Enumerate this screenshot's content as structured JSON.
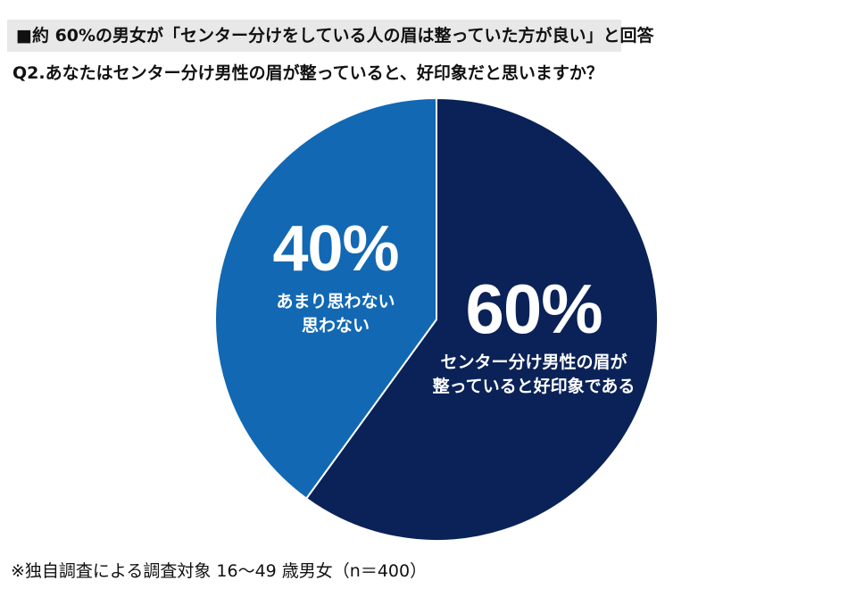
{
  "header": {
    "headline": "■約 60%の男女が「センター分けをしている人の眉は整っていた方が良い」と回答",
    "question": "Q2.あなたはセンター分け男性の眉が整っていると、好印象だと思いますか？"
  },
  "chart_data": {
    "type": "pie",
    "title": "",
    "slices": [
      {
        "value": 60,
        "percent_label": "60%",
        "label_lines": [
          "センター分け男性の眉が",
          "整っていると好印象である"
        ],
        "color": "#0a2257"
      },
      {
        "value": 40,
        "percent_label": "40%",
        "label_lines": [
          "あまり思わない",
          "思わない"
        ],
        "color": "#1268b3"
      }
    ]
  },
  "footnote": "※独自調査による調査対象 16～49 歳男女（n＝400）"
}
